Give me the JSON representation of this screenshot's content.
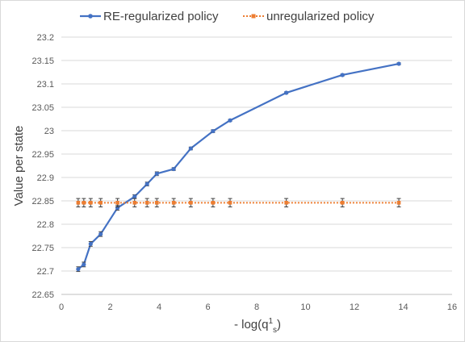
{
  "chart_data": {
    "type": "line",
    "title": "",
    "xlabel": "-  log(q",
    "xlabel_sup": "1",
    "xlabel_sub": "s",
    "xlabel_close": ")",
    "ylabel": "Value per state",
    "xlim": [
      0,
      16
    ],
    "ylim": [
      22.65,
      23.2
    ],
    "xticks": [
      "0",
      "2",
      "4",
      "6",
      "8",
      "10",
      "12",
      "14",
      "16"
    ],
    "yticks": [
      "22.65",
      "22.7",
      "22.75",
      "22.8",
      "22.85",
      "22.9",
      "22.95",
      "23",
      "23.05",
      "23.1",
      "23.15",
      "23.2"
    ],
    "grid": "horizontal",
    "legend_position": "top",
    "series": [
      {
        "name": "RE-regularized policy",
        "color": "#4472c4",
        "line_style": "solid",
        "x": [
          0.69,
          0.92,
          1.2,
          1.61,
          2.3,
          3.0,
          3.51,
          3.91,
          4.6,
          5.3,
          6.21,
          6.91,
          9.21,
          11.51,
          13.82
        ],
        "values": [
          22.704,
          22.714,
          22.758,
          22.779,
          22.835,
          22.859,
          22.886,
          22.908,
          22.918,
          22.962,
          22.999,
          23.022,
          23.081,
          23.119,
          23.143
        ],
        "errors": [
          0.005,
          0.005,
          0.005,
          0.005,
          0.005,
          0.004,
          0.004,
          0.004,
          0.003,
          0.003,
          0.003,
          0.002,
          0.002,
          0.002,
          0.002
        ]
      },
      {
        "name": "unregularized policy",
        "color": "#ed7d31",
        "line_style": "dotted",
        "x": [
          0.69,
          0.92,
          1.2,
          1.61,
          2.3,
          3.0,
          3.51,
          3.91,
          4.6,
          5.3,
          6.21,
          6.91,
          9.21,
          11.51,
          13.82
        ],
        "values": [
          22.846,
          22.846,
          22.846,
          22.846,
          22.846,
          22.846,
          22.846,
          22.846,
          22.846,
          22.846,
          22.846,
          22.846,
          22.846,
          22.846,
          22.846
        ],
        "errors": [
          0.009,
          0.009,
          0.009,
          0.009,
          0.009,
          0.009,
          0.009,
          0.009,
          0.009,
          0.009,
          0.009,
          0.009,
          0.009,
          0.009,
          0.009
        ]
      }
    ]
  }
}
